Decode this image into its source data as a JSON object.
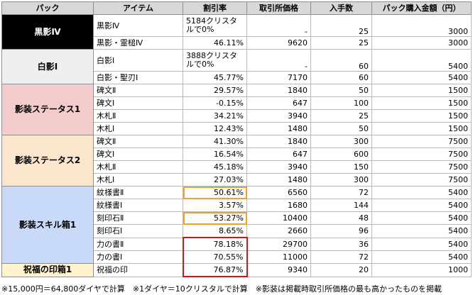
{
  "headers": {
    "pack": "パック",
    "item": "アイテム",
    "discount": "割引率",
    "market_price": "取引所価格",
    "quantity": "入手数",
    "pack_price": "パック購入金額（円）"
  },
  "packs": [
    {
      "name": "黒影Ⅳ",
      "bg": "#000000",
      "fg": "#ffffff"
    },
    {
      "name": "白影Ⅰ",
      "bg": "#efefef",
      "fg": "#000000"
    },
    {
      "name": "影装ステータス1",
      "bg": "#f4cccc",
      "fg": "#000000"
    },
    {
      "name": "影装ステータス2",
      "bg": "#fce5cd",
      "fg": "#000000"
    },
    {
      "name": "影装スキル箱1",
      "bg": "#c9daf8",
      "fg": "#000000"
    },
    {
      "name": "祝福の印箱1",
      "bg": "#fff2cc",
      "fg": "#000000"
    }
  ],
  "rows": [
    {
      "item": "黒影Ⅳ",
      "discount": "5184クリスタルで0%",
      "price": "-",
      "qty": "25",
      "yen": "3000"
    },
    {
      "item": "黒影・霊槌Ⅳ",
      "discount": "46.11%",
      "price": "9620",
      "qty": "25",
      "yen": "3000"
    },
    {
      "item": "白影Ⅰ",
      "discount": "3888クリスタルで0%",
      "price": "-",
      "qty": "60",
      "yen": "5400"
    },
    {
      "item": "白影・聖刃Ⅰ",
      "discount": "45.77%",
      "price": "7170",
      "qty": "60",
      "yen": "5400"
    },
    {
      "item": "碑文Ⅱ",
      "discount": "29.57%",
      "price": "1840",
      "qty": "50",
      "yen": "1500"
    },
    {
      "item": "碑文Ⅰ",
      "discount": "-0.15%",
      "price": "647",
      "qty": "100",
      "yen": "1500"
    },
    {
      "item": "木札Ⅱ",
      "discount": "34.21%",
      "price": "3940",
      "qty": "25",
      "yen": "1500"
    },
    {
      "item": "木札Ⅰ",
      "discount": "12.43%",
      "price": "1480",
      "qty": "50",
      "yen": "1500"
    },
    {
      "item": "碑文Ⅱ",
      "discount": "41.30%",
      "price": "1840",
      "qty": "300",
      "yen": "7500"
    },
    {
      "item": "碑文Ⅰ",
      "discount": "16.54%",
      "price": "647",
      "qty": "600",
      "yen": "7500"
    },
    {
      "item": "木札Ⅱ",
      "discount": "45.18%",
      "price": "3940",
      "qty": "150",
      "yen": "7500"
    },
    {
      "item": "木札Ⅰ",
      "discount": "27.03%",
      "price": "1480",
      "qty": "300",
      "yen": "7500"
    },
    {
      "item": "紋様書Ⅱ",
      "discount": "50.61%",
      "price": "6560",
      "qty": "72",
      "yen": "5400"
    },
    {
      "item": "紋様書Ⅰ",
      "discount": "3.57%",
      "price": "1680",
      "qty": "144",
      "yen": "5400"
    },
    {
      "item": "刻印石Ⅱ",
      "discount": "53.27%",
      "price": "10400",
      "qty": "48",
      "yen": "5400"
    },
    {
      "item": "刻印石Ⅰ",
      "discount": "8.65%",
      "price": "2660",
      "qty": "96",
      "yen": "5400"
    },
    {
      "item": "力の書Ⅱ",
      "discount": "78.18%",
      "price": "29700",
      "qty": "36",
      "yen": "5400"
    },
    {
      "item": "力の書Ⅰ",
      "discount": "70.55%",
      "price": "11000",
      "qty": "72",
      "yen": "5400"
    },
    {
      "item": "祝福の印",
      "discount": "76.87%",
      "price": "9340",
      "qty": "20",
      "yen": "1000"
    }
  ],
  "footer": "※15,000円＝64,800ダイヤで計算　※1ダイヤ＝10クリスタルで計算　※影装は掲載時取引所価格の最も高かったものを掲載"
}
